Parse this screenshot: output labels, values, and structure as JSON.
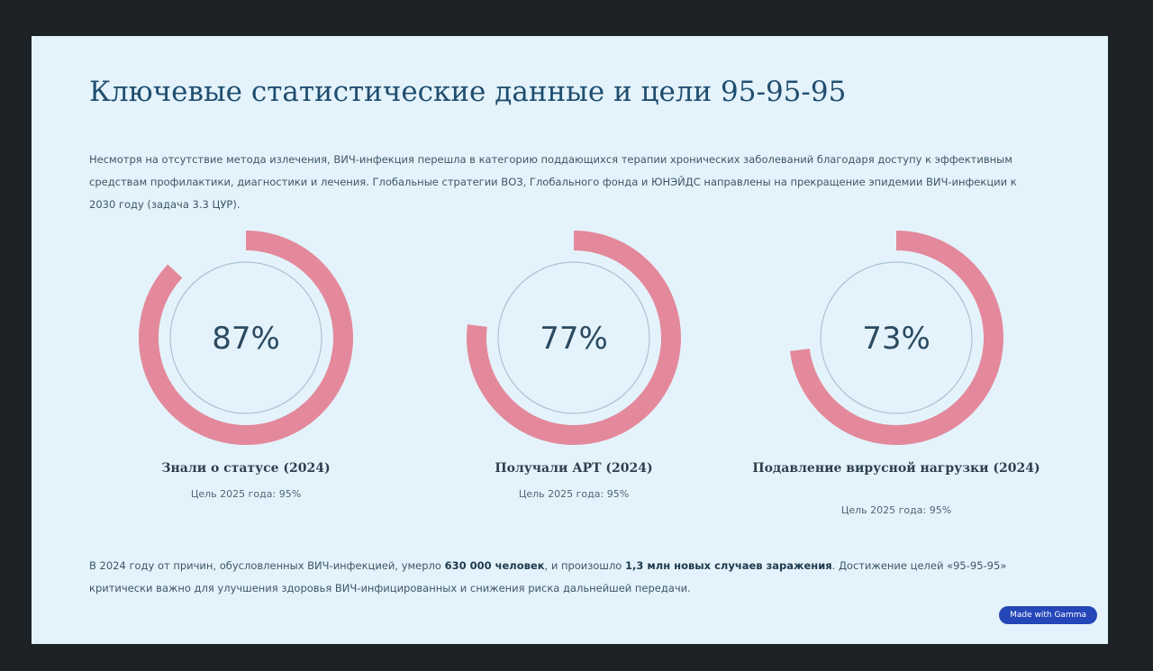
{
  "slide": {
    "title": "Ключевые статистические данные и цели 95-95-95",
    "intro": "Несмотря на отсутствие метода излечения, ВИЧ-инфекция перешла в категорию поддающихся терапии хронических заболеваний благодаря доступу к эффективным средствам профилактики, диагностики и лечения. Глобальные стратегии ВОЗ, Глобального фонда и ЮНЭЙДС направлены на прекращение эпидемии ВИЧ-инфекции к 2030 году (задача 3.3 ЦУР).",
    "footer": [
      "В 2024 году от причин, обусловленных ВИЧ-инфекцией, умерло ",
      "630 000 человек",
      ", и произошло ",
      "1,3 млн новых случаев заражения",
      ". Достижение целей «95-95-95» критически важно для улучшения здоровья ВИЧ-инфицированных и снижения риска дальнейшей передачи."
    ],
    "badge": "Made with Gamma"
  },
  "chart_data": [
    {
      "type": "ring",
      "title": "Знали о статусе (2024)",
      "subtitle": "Цель 2025 года: 95%",
      "values": [
        87
      ],
      "value_labels": [
        "87%"
      ],
      "color": "#e3899b"
    },
    {
      "type": "ring",
      "title": "Получали АРТ (2024)",
      "subtitle": "Цель 2025 года: 95%",
      "values": [
        77
      ],
      "value_labels": [
        "77%"
      ],
      "color": "#e3899b"
    },
    {
      "type": "ring",
      "title": "Подавление вирусной нагрузки (2024)",
      "subtitle": "Цель 2025 года: 95%",
      "values": [
        73
      ],
      "value_labels": [
        "73%"
      ],
      "color": "#e3899b"
    }
  ]
}
